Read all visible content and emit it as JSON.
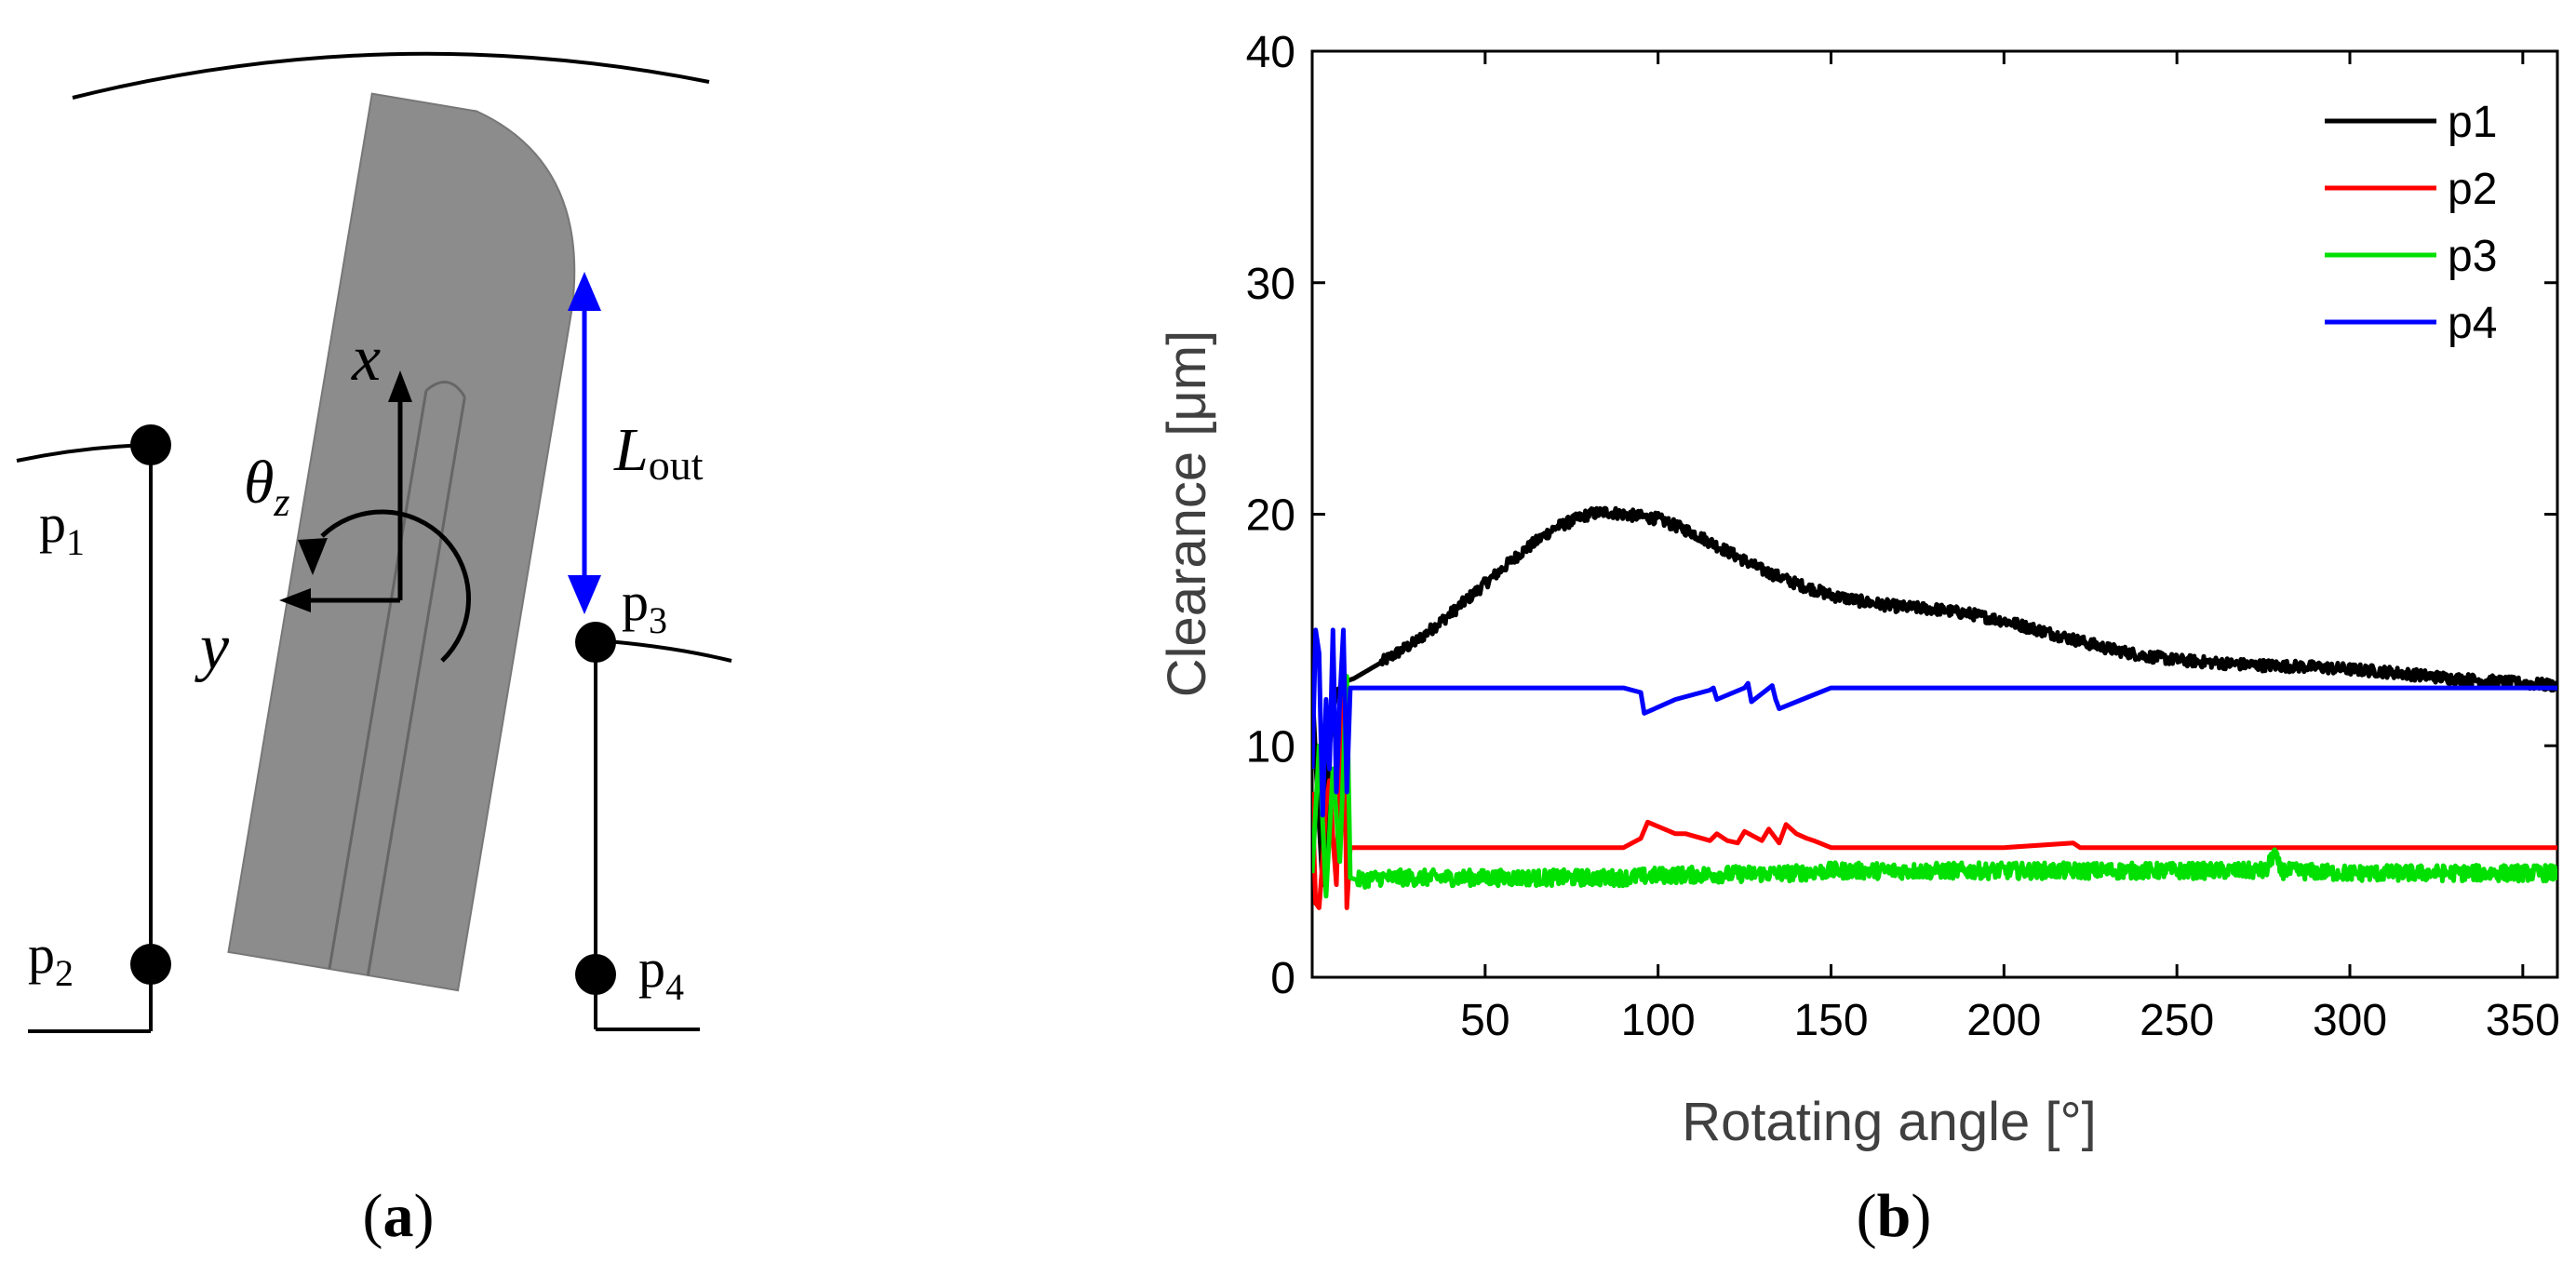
{
  "panel_a": {
    "caption": "(a)",
    "caption_letter": "a",
    "points": [
      {
        "base": "p",
        "sub": "1"
      },
      {
        "base": "p",
        "sub": "2"
      },
      {
        "base": "p",
        "sub": "3"
      },
      {
        "base": "p",
        "sub": "4"
      }
    ],
    "axis_x": "x",
    "axis_y": "y",
    "theta": {
      "base": "θ",
      "sub": "z"
    },
    "length": {
      "base": "L",
      "sub": "out"
    }
  },
  "panel_b": {
    "caption": "(b)",
    "caption_letter": "b"
  },
  "colors": {
    "p1": "#000000",
    "p2": "#ff0000",
    "p3": "#00e000",
    "p4": "#0000ff",
    "arrow": "#0000ff",
    "vane": "#8c8c8c"
  },
  "chart_data": {
    "type": "line",
    "title": "",
    "xlabel": "Rotating angle [°]",
    "ylabel": "Clearance [μm]",
    "xlim": [
      0,
      360
    ],
    "ylim": [
      0,
      40
    ],
    "xticks": [
      50,
      100,
      150,
      200,
      250,
      300,
      350
    ],
    "yticks": [
      0,
      10,
      20,
      30,
      40
    ],
    "grid": false,
    "legend": "top-right",
    "series": [
      {
        "name": "p1",
        "color": "#000000",
        "noise": 0.25,
        "x": [
          0,
          1.5,
          3,
          5,
          7,
          9,
          10,
          12,
          20,
          30,
          40,
          50,
          60,
          70,
          80,
          85,
          90,
          100,
          110,
          120,
          130,
          140,
          150,
          160,
          170,
          180,
          190,
          200,
          210,
          220,
          230,
          240,
          250,
          260,
          270,
          280,
          290,
          300,
          310,
          320,
          330,
          340,
          350,
          360
        ],
        "y": [
          12.5,
          8,
          4,
          10,
          12.4,
          12.6,
          12.8,
          12.9,
          13.6,
          14.5,
          15.7,
          17.0,
          18.3,
          19.4,
          20.0,
          20.1,
          20.0,
          19.8,
          19.2,
          18.4,
          17.6,
          17.0,
          16.5,
          16.2,
          16.0,
          15.9,
          15.7,
          15.4,
          15.0,
          14.6,
          14.2,
          13.9,
          13.7,
          13.6,
          13.5,
          13.45,
          13.4,
          13.3,
          13.2,
          13.05,
          12.9,
          12.8,
          12.7,
          12.6
        ]
      },
      {
        "name": "p2",
        "color": "#ff0000",
        "noise": 0,
        "x": [
          0,
          1,
          2,
          3,
          4,
          5,
          6,
          7,
          8,
          9,
          10,
          11,
          12,
          90,
          95,
          97,
          105,
          108,
          115,
          117,
          120,
          123,
          125,
          130,
          132,
          135,
          137,
          140,
          143,
          145,
          150,
          200,
          220,
          222,
          225,
          360
        ],
        "y": [
          8,
          3.2,
          3,
          5,
          7.5,
          8.5,
          6,
          4,
          9,
          13,
          3,
          5.6,
          5.6,
          5.6,
          6.0,
          6.7,
          6.2,
          6.2,
          5.9,
          6.2,
          5.9,
          5.8,
          6.3,
          5.9,
          6.4,
          5.8,
          6.6,
          6.2,
          6.0,
          5.9,
          5.6,
          5.6,
          5.8,
          5.6,
          5.6,
          5.6
        ]
      },
      {
        "name": "p3",
        "color": "#00e000",
        "noise": 0.35,
        "x": [
          0,
          2,
          4,
          6,
          8,
          10,
          11,
          13,
          20,
          50,
          90,
          100,
          140,
          150,
          200,
          240,
          276,
          278,
          280,
          300,
          360
        ],
        "y": [
          4.5,
          10,
          3.5,
          9,
          5,
          13,
          4.3,
          4.2,
          4.3,
          4.3,
          4.3,
          4.4,
          4.5,
          4.6,
          4.6,
          4.6,
          4.6,
          5.4,
          4.6,
          4.5,
          4.5
        ]
      },
      {
        "name": "p4",
        "color": "#0000ff",
        "noise": 0,
        "x": [
          0,
          1,
          2,
          3,
          4,
          5,
          6,
          7,
          8,
          9,
          10,
          11,
          12,
          90,
          95,
          96,
          105,
          115,
          116,
          117,
          125,
          126,
          127,
          133,
          134,
          135,
          140,
          145,
          150,
          200,
          360
        ],
        "y": [
          9,
          15,
          14,
          7,
          12,
          9,
          15,
          8,
          12,
          15,
          8,
          12.5,
          12.5,
          12.5,
          12.3,
          11.4,
          12.0,
          12.4,
          12.5,
          12.0,
          12.5,
          12.7,
          11.9,
          12.6,
          12.0,
          11.6,
          11.9,
          12.2,
          12.5,
          12.5,
          12.5
        ]
      }
    ]
  }
}
